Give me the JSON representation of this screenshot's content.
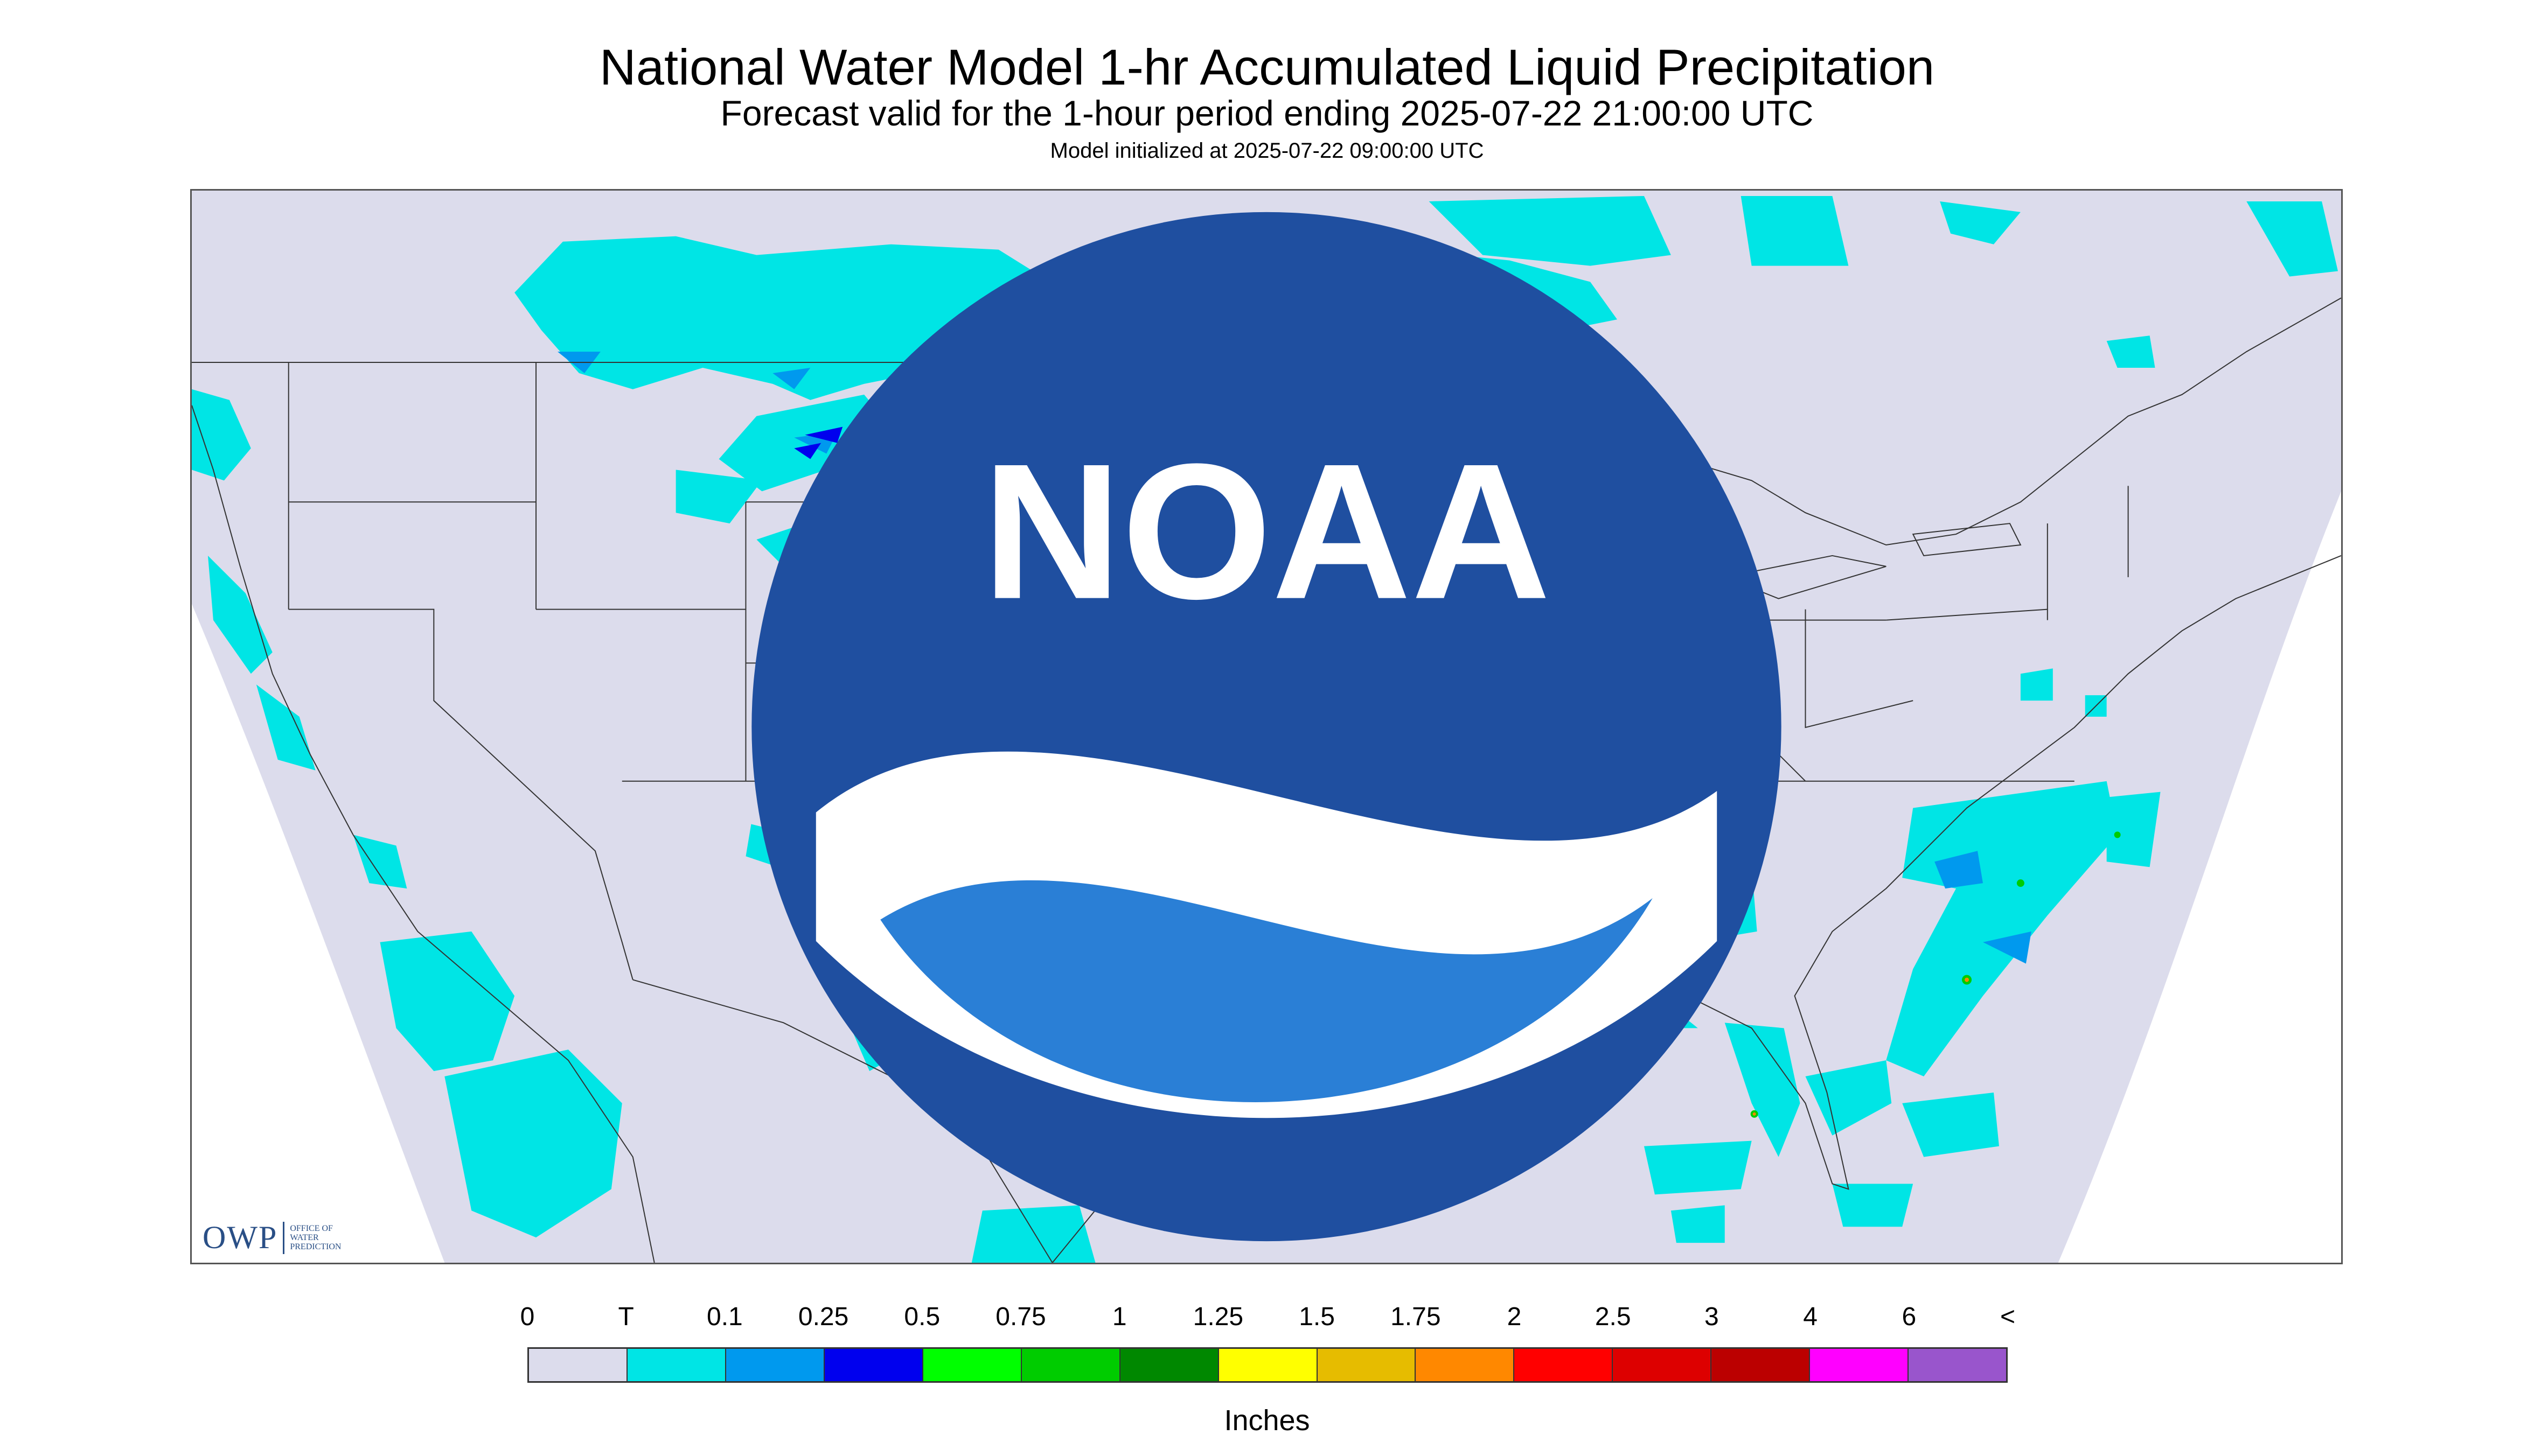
{
  "title": "National Water Model 1-hr Accumulated Liquid Precipitation",
  "subtitle": "Forecast valid for the 1-hour period ending 2025-07-22 21:00:00 UTC",
  "init_text": "Model initialized at 2025-07-22 09:00:00 UTC",
  "logo": {
    "owp_abbrev": "OWP",
    "owp_line1": "OFFICE OF",
    "owp_line2": "WATER",
    "owp_line3": "PREDICTION",
    "noaa_text": "NOAA"
  },
  "legend": {
    "labels": [
      "0",
      "T",
      "0.1",
      "0.25",
      "0.5",
      "0.75",
      "1",
      "1.25",
      "1.5",
      "1.75",
      "2",
      "2.5",
      "3",
      "4",
      "6",
      "<"
    ],
    "colors": [
      "#dcdcec",
      "#00e5e5",
      "#0099ee",
      "#0000ee",
      "#00ff00",
      "#00cc00",
      "#008800",
      "#ffff00",
      "#e6bc00",
      "#ff8800",
      "#ff0000",
      "#dd0000",
      "#bb0000",
      "#ff00ff",
      "#9955cc"
    ],
    "units": "Inches"
  },
  "colors": {
    "no_data": "#ffffff",
    "map_background": "#dcdcec",
    "trace": "#00e5e5",
    "light": "#0099ee",
    "moderate": "#0000ee",
    "boundary_lines": "#333333"
  }
}
